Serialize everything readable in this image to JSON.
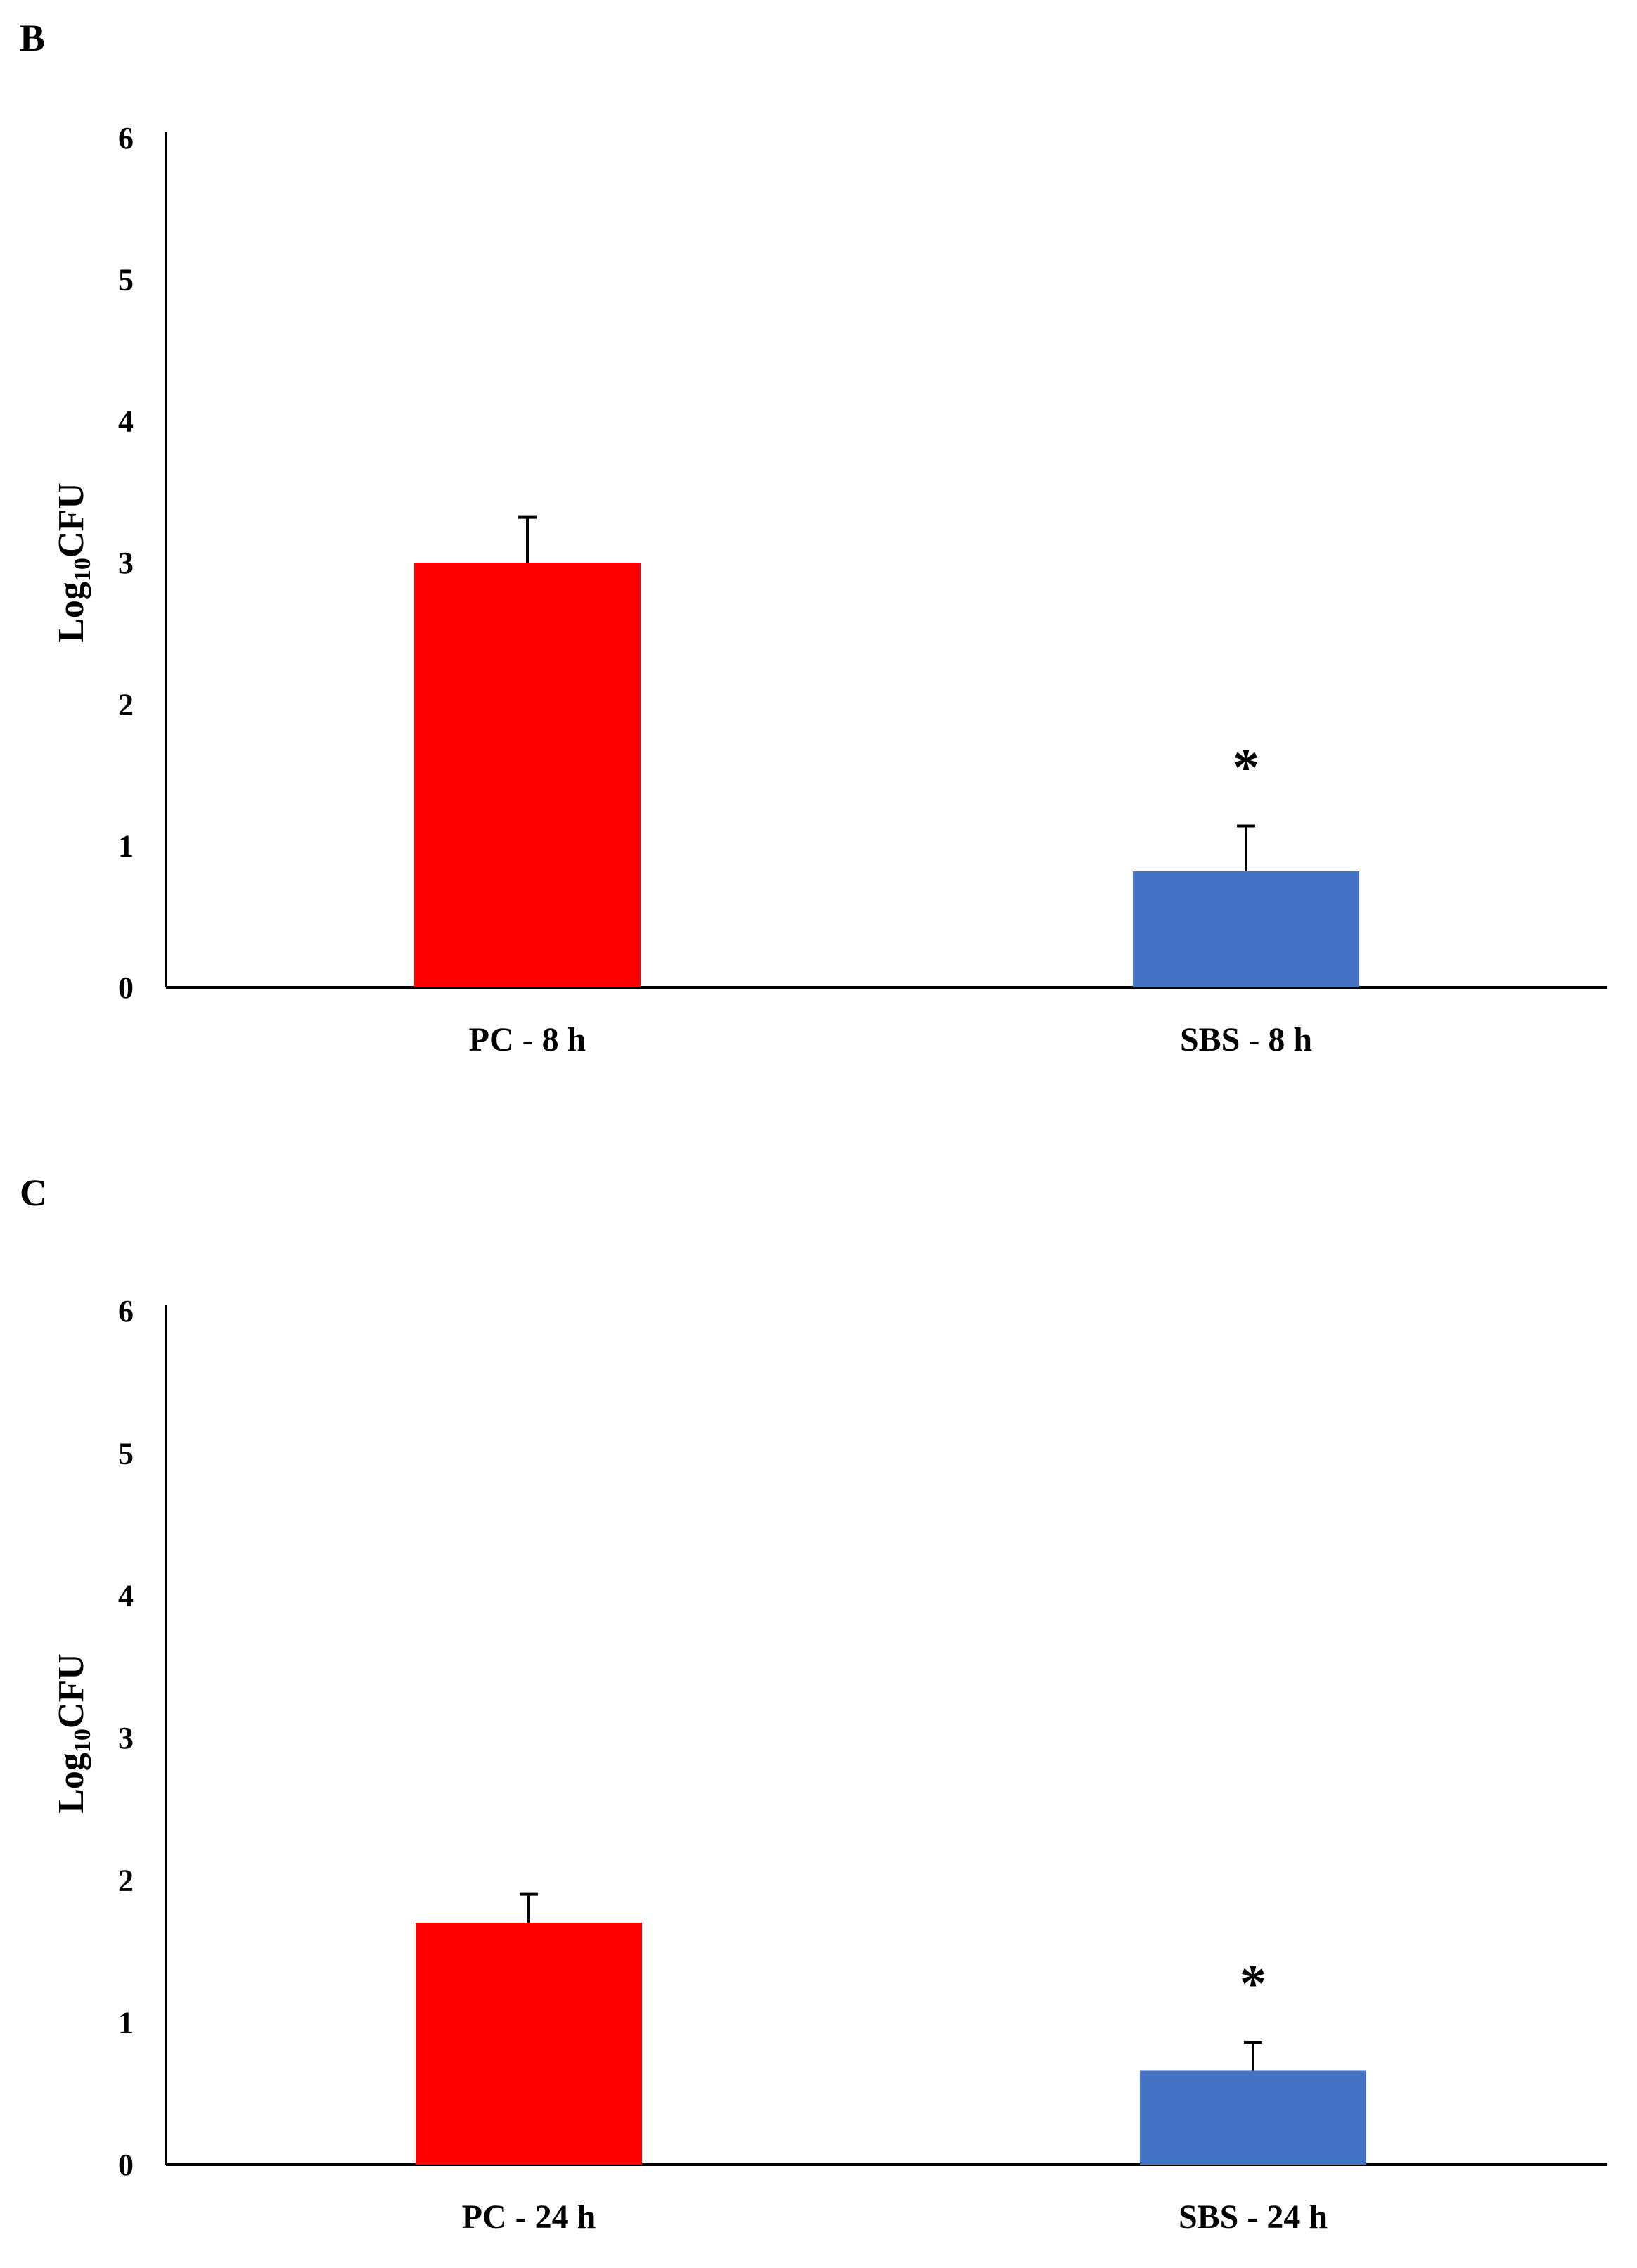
{
  "chart_data": [
    {
      "type": "bar",
      "panel_label": "B",
      "categories": [
        "PC - 8 h",
        "SBS - 8 h"
      ],
      "values": [
        3.0,
        0.82
      ],
      "error": [
        0.32,
        0.32
      ],
      "significance": [
        "",
        "*"
      ],
      "colors": [
        "#ff0000",
        "#4472c4"
      ],
      "ylabel_main": "Log",
      "ylabel_sub": "10",
      "ylabel_tail": "CFU",
      "ylim": [
        0,
        6
      ],
      "yticks": [
        "0",
        "1",
        "2",
        "3",
        "4",
        "5",
        "6"
      ],
      "grid": false,
      "legend": "none"
    },
    {
      "type": "bar",
      "panel_label": "C",
      "categories": [
        "PC - 24 h",
        "SBS - 24 h"
      ],
      "values": [
        1.7,
        0.66
      ],
      "error": [
        0.2,
        0.2
      ],
      "significance": [
        "",
        "*"
      ],
      "colors": [
        "#ff0000",
        "#4472c4"
      ],
      "ylabel_main": "Log",
      "ylabel_sub": "10",
      "ylabel_tail": "CFU",
      "ylim": [
        0,
        6
      ],
      "yticks": [
        "0",
        "1",
        "2",
        "3",
        "4",
        "5",
        "6"
      ],
      "grid": false,
      "legend": "none"
    }
  ]
}
